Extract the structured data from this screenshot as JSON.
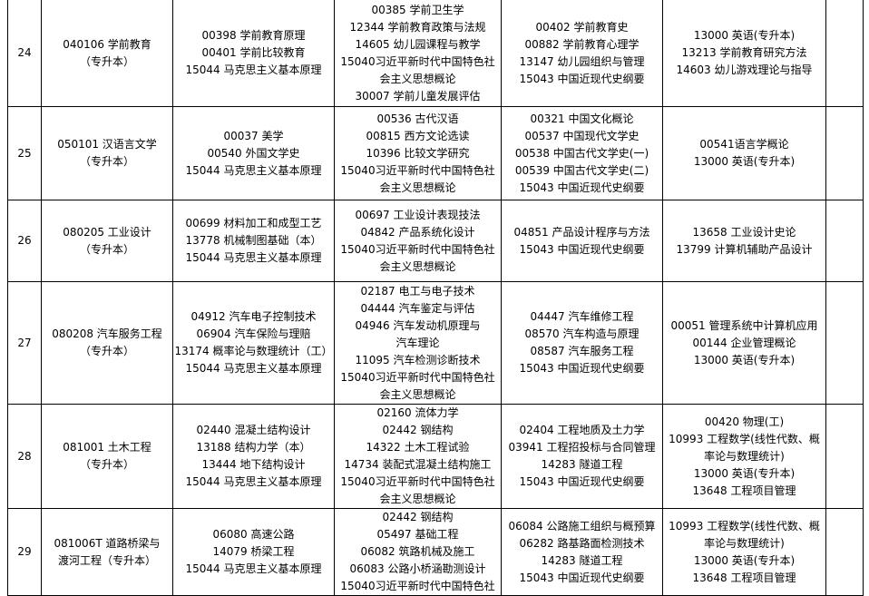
{
  "rows": [
    {
      "no": "24",
      "major": [
        "040106 学前教育",
        "（专升本）"
      ],
      "c1": [
        "00398 学前教育原理",
        "00401 学前比较教育",
        "15044 马克思主义基本原理"
      ],
      "c2": [
        "00385 学前卫生学",
        "12344 学前教育政策与法规",
        "14605 幼儿园课程与教学",
        "15040习近平新时代中国特色社",
        "会主义思想概论",
        "30007 学前儿童发展评估"
      ],
      "c3": [
        "00402 学前教育史",
        "00882 学前教育心理学",
        "13147 幼儿园组织与管理",
        "15043 中国近现代史纲要"
      ],
      "c4": [
        "13000 英语(专升本)",
        "13213 学前教育研究方法",
        "14603 幼儿游戏理论与指导"
      ],
      "c5": []
    },
    {
      "no": "25",
      "major": [
        "050101 汉语言文学",
        "（专升本）"
      ],
      "c1": [
        "00037 美学",
        "00540 外国文学史",
        "15044 马克思主义基本原理"
      ],
      "c2": [
        "00536 古代汉语",
        "00815 西方文论选读",
        "10396 比较文学研究",
        "15040习近平新时代中国特色社",
        "会主义思想概论"
      ],
      "c3": [
        "00321 中国文化概论",
        "00537 中国现代文学史",
        "00538 中国古代文学史(一)",
        "00539 中国古代文学史(二)",
        "15043 中国近现代史纲要"
      ],
      "c4": [
        "00541语言学概论",
        "13000 英语(专升本)"
      ],
      "c5": []
    },
    {
      "no": "26",
      "major": [
        "080205 工业设计",
        "（专升本）"
      ],
      "c1": [
        "00699 材料加工和成型工艺",
        "13778 机械制图基础（本）",
        "15044 马克思主义基本原理"
      ],
      "c2": [
        "00697 工业设计表现技法",
        "04842 产品系统化设计",
        "15040习近平新时代中国特色社",
        "会主义思想概论"
      ],
      "c3": [
        "04851 产品设计程序与方法",
        "15043 中国近现代史纲要"
      ],
      "c4": [
        "13658 工业设计史论",
        "13799 计算机辅助产品设计"
      ],
      "c5": []
    },
    {
      "no": "27",
      "major": [
        "080208 汽车服务工程",
        "（专升本）"
      ],
      "c1": [
        "04912 汽车电子控制技术",
        "06904 汽车保险与理赔",
        "13174 概率论与数理统计（工）",
        "15044 马克思主义基本原理"
      ],
      "c2": [
        "02187 电工与电子技术",
        "04444 汽车鉴定与评估",
        "04946 汽车发动机原理与",
        "汽车理论",
        "11095 汽车检测诊断技术",
        "15040习近平新时代中国特色社",
        "会主义思想概论"
      ],
      "c3": [
        "04447 汽车维修工程",
        "08570 汽车构造与原理",
        "08587 汽车服务工程",
        "15043 中国近现代史纲要"
      ],
      "c4": [
        "00051 管理系统中计算机应用",
        "00144 企业管理概论",
        "13000 英语(专升本)"
      ],
      "c5": []
    },
    {
      "no": "28",
      "major": [
        "081001 土木工程",
        "（专升本）"
      ],
      "c1": [
        "02440 混凝土结构设计",
        "13188 结构力学（本）",
        "13444 地下结构设计",
        "15044 马克思主义基本原理"
      ],
      "c2": [
        "02160 流体力学",
        "02442 钢结构",
        "14322 土木工程试验",
        "14734 装配式混凝土结构施工",
        "15040习近平新时代中国特色社",
        "会主义思想概论"
      ],
      "c3": [
        "02404 工程地质及土力学",
        "03941 工程招投标与合同管理",
        "14283 隧道工程",
        "15043 中国近现代史纲要"
      ],
      "c4": [
        "00420 物理(工)",
        "10993 工程数学(线性代数、概",
        "率论与数理统计)",
        "13000 英语(专升本)",
        "13648 工程项目管理"
      ],
      "c5": []
    },
    {
      "no": "29",
      "major": [
        "081006T 道路桥梁与",
        "渡河工程（专升本）"
      ],
      "c1": [
        "06080 高速公路",
        "14079 桥梁工程",
        "15044 马克思主义基本原理"
      ],
      "c2": [
        "02442 钢结构",
        "05497 基础工程",
        "06082 筑路机械及施工",
        "06083 公路小桥涵勘测设计",
        "15040习近平新时代中国特色社"
      ],
      "c3": [
        "06084 公路施工组织与概预算",
        "06282 路基路面检测技术",
        "14283 隧道工程",
        "15043 中国近现代史纲要"
      ],
      "c4": [
        "10993 工程数学(线性代数、概",
        "率论与数理统计)",
        "13000 英语(专升本)",
        "13648 工程项目管理"
      ],
      "c5": []
    }
  ]
}
